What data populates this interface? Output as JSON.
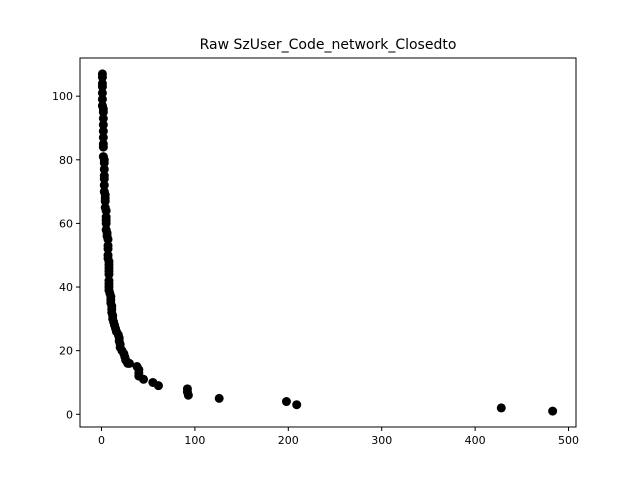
{
  "chart_data": {
    "type": "scatter",
    "title": "Raw SzUser_Code_network_Closedto",
    "xlabel": "",
    "ylabel": "",
    "xlim": [
      -23,
      508
    ],
    "ylim": [
      -4,
      112
    ],
    "xticks": [
      0,
      100,
      200,
      300,
      400,
      500
    ],
    "yticks": [
      0,
      20,
      40,
      60,
      80,
      100
    ],
    "grid": false,
    "marker_color": "#000000",
    "points": [
      [
        1,
        107
      ],
      [
        1,
        106
      ],
      [
        1,
        104
      ],
      [
        1,
        103
      ],
      [
        1,
        101
      ],
      [
        1,
        99
      ],
      [
        1,
        97
      ],
      [
        2,
        96
      ],
      [
        2,
        95
      ],
      [
        2,
        93
      ],
      [
        2,
        91
      ],
      [
        2,
        89
      ],
      [
        2,
        87
      ],
      [
        2,
        85
      ],
      [
        2,
        84
      ],
      [
        2,
        81
      ],
      [
        3,
        80
      ],
      [
        3,
        79
      ],
      [
        3,
        77
      ],
      [
        3,
        75
      ],
      [
        3,
        74
      ],
      [
        3,
        72
      ],
      [
        3,
        70
      ],
      [
        4,
        69
      ],
      [
        4,
        68
      ],
      [
        4,
        67
      ],
      [
        4,
        65
      ],
      [
        5,
        64
      ],
      [
        5,
        62
      ],
      [
        5,
        61
      ],
      [
        5,
        60
      ],
      [
        5,
        58
      ],
      [
        6,
        57
      ],
      [
        6,
        56
      ],
      [
        7,
        55
      ],
      [
        7,
        53
      ],
      [
        7,
        52
      ],
      [
        7,
        50
      ],
      [
        7,
        49
      ],
      [
        8,
        48
      ],
      [
        8,
        47
      ],
      [
        8,
        46
      ],
      [
        8,
        45
      ],
      [
        8,
        44
      ],
      [
        8,
        42
      ],
      [
        8,
        41
      ],
      [
        8,
        40
      ],
      [
        8,
        39
      ],
      [
        9,
        38
      ],
      [
        10,
        37
      ],
      [
        10,
        36
      ],
      [
        10,
        35
      ],
      [
        11,
        34
      ],
      [
        11,
        33
      ],
      [
        11,
        32
      ],
      [
        12,
        31
      ],
      [
        12,
        30
      ],
      [
        13,
        29
      ],
      [
        14,
        28
      ],
      [
        15,
        27
      ],
      [
        16,
        26
      ],
      [
        18,
        25
      ],
      [
        19,
        24
      ],
      [
        19,
        23
      ],
      [
        20,
        22
      ],
      [
        20,
        21
      ],
      [
        22,
        20
      ],
      [
        24,
        19
      ],
      [
        25,
        18
      ],
      [
        26,
        17
      ],
      [
        28,
        16
      ],
      [
        30,
        16
      ],
      [
        38,
        15
      ],
      [
        40,
        14
      ],
      [
        40,
        13
      ],
      [
        40,
        12
      ],
      [
        45,
        11
      ],
      [
        55,
        10
      ],
      [
        61,
        9
      ],
      [
        92,
        8
      ],
      [
        92,
        7
      ],
      [
        93,
        6
      ],
      [
        126,
        5
      ],
      [
        198,
        4
      ],
      [
        209,
        3
      ],
      [
        428,
        2
      ],
      [
        483,
        1
      ]
    ]
  }
}
